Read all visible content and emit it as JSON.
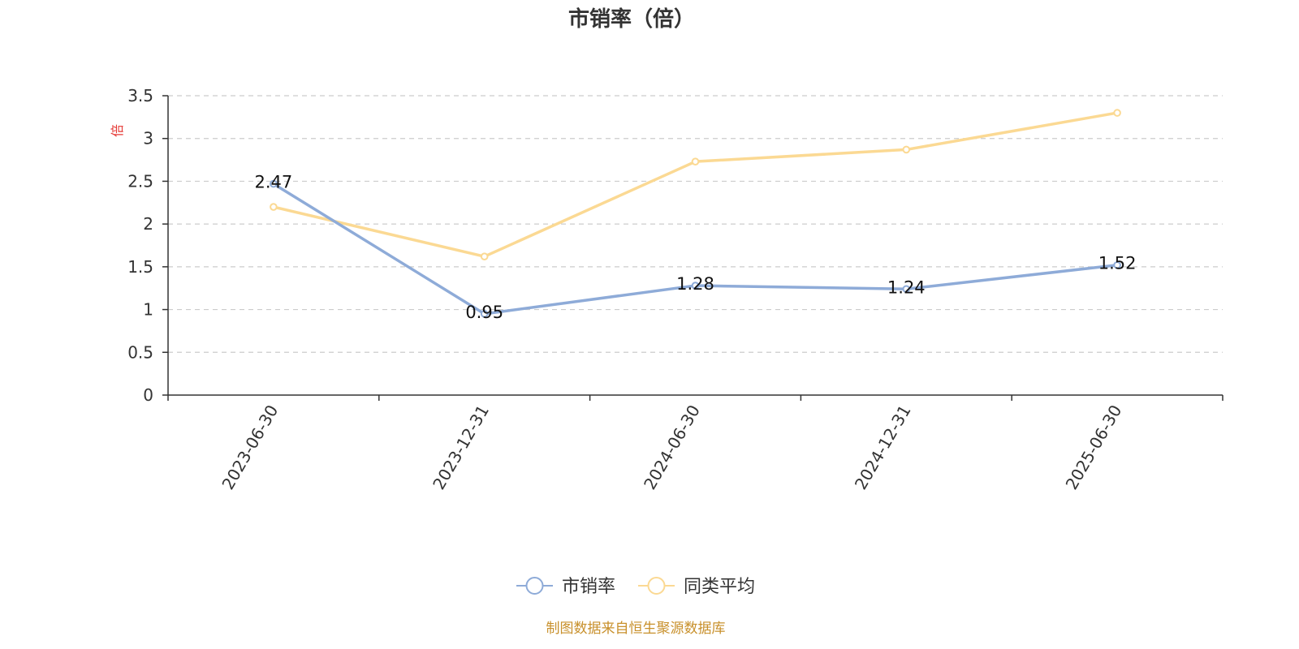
{
  "chart_data": {
    "type": "line",
    "title": "市销率（倍）",
    "y_unit": "倍",
    "categories": [
      "2023-06-30",
      "2023-12-31",
      "2024-06-30",
      "2024-12-31",
      "2025-06-30"
    ],
    "series": [
      {
        "name": "市销率",
        "values": [
          2.47,
          0.95,
          1.28,
          1.24,
          1.52
        ],
        "color": "#8eabd8",
        "show_labels": true
      },
      {
        "name": "同类平均",
        "values": [
          2.2,
          1.62,
          2.73,
          2.87,
          3.3
        ],
        "color": "#fbd993",
        "show_labels": false
      }
    ],
    "yticks": [
      "0",
      "0.5",
      "1",
      "1.5",
      "2",
      "2.5",
      "3",
      "3.5"
    ],
    "ylim": [
      0,
      3.5
    ],
    "grid": true,
    "legend_position": "bottom-center",
    "source": "制图数据来自恒生聚源数据库"
  }
}
